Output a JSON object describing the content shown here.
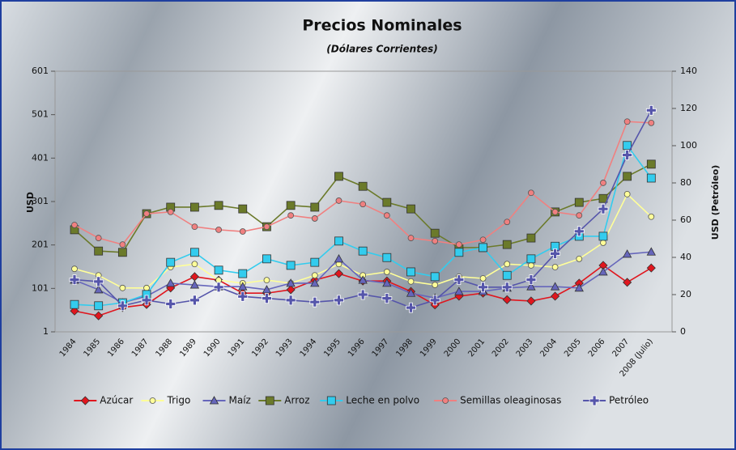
{
  "chart_data": {
    "type": "line",
    "title": "Precios Nominales",
    "subtitle": "(Dólares Corrientes)",
    "y_label": "USD",
    "y2_label": "USD (Petróleo)",
    "categories": [
      "1984",
      "1985",
      "1986",
      "1987",
      "1988",
      "1989",
      "1990",
      "1991",
      "1992",
      "1993",
      "1994",
      "1995",
      "1996",
      "1997",
      "1998",
      "1999",
      "2000",
      "2001",
      "2002",
      "2003",
      "2004",
      "2005",
      "2006",
      "2007",
      "2008 (Julio)"
    ],
    "ylim": [
      1,
      601
    ],
    "yticks": [
      1,
      101,
      201,
      301,
      401,
      501,
      601
    ],
    "y2lim": [
      0,
      140
    ],
    "y2ticks": [
      0,
      20,
      40,
      60,
      80,
      100,
      120,
      140
    ],
    "legend": "bottom",
    "series": [
      {
        "name": "Azúcar",
        "color": "#e0161e",
        "marker": "diamond",
        "values": [
          49,
          38,
          57,
          64,
          102,
          128,
          120,
          90,
          90,
          98,
          120,
          135,
          118,
          118,
          94,
          63,
          83,
          90,
          75,
          72,
          83,
          113,
          154,
          115,
          148
        ]
      },
      {
        "name": "Trigo",
        "color": "#ffff99",
        "marker": "circle",
        "values": [
          146,
          131,
          102,
          102,
          150,
          157,
          120,
          113,
          120,
          113,
          131,
          157,
          131,
          139,
          117,
          109,
          128,
          124,
          157,
          154,
          150,
          169,
          206,
          318,
          266
        ]
      },
      {
        "name": "Maíz",
        "color": "#6666bb",
        "marker": "triangle",
        "values": [
          120,
          98,
          68,
          83,
          113,
          109,
          105,
          105,
          98,
          113,
          113,
          169,
          120,
          113,
          90,
          79,
          94,
          94,
          102,
          105,
          105,
          102,
          139,
          180,
          185
        ]
      },
      {
        "name": "Arroz",
        "color": "#6b7a2a",
        "marker": "square",
        "values": [
          236,
          187,
          184,
          273,
          288,
          288,
          292,
          284,
          243,
          292,
          288,
          359,
          336,
          299,
          284,
          228,
          195,
          195,
          202,
          217,
          277,
          299,
          308,
          359,
          387
        ]
      },
      {
        "name": "Leche en polvo",
        "color": "#33ccee",
        "marker": "square",
        "values": [
          64,
          61,
          68,
          87,
          161,
          184,
          143,
          135,
          169,
          154,
          161,
          210,
          187,
          172,
          139,
          128,
          184,
          195,
          131,
          169,
          198,
          221,
          221,
          430,
          355
        ]
      },
      {
        "name": "Semillas oleaginosas",
        "color": "#f08080",
        "marker": "circle",
        "values": [
          247,
          217,
          202,
          273,
          277,
          243,
          236,
          232,
          243,
          269,
          262,
          303,
          295,
          269,
          217,
          210,
          202,
          213,
          254,
          321,
          277,
          269,
          344,
          485,
          482
        ]
      },
      {
        "name": "Petróleo",
        "color": "#5555aa",
        "marker": "plus",
        "axis": "y2",
        "values": [
          28,
          27,
          14,
          17,
          15,
          17,
          24,
          19,
          18,
          17,
          16,
          17,
          20,
          18,
          13,
          17,
          28,
          24,
          24,
          28,
          42,
          54,
          66,
          95,
          119
        ]
      }
    ]
  }
}
